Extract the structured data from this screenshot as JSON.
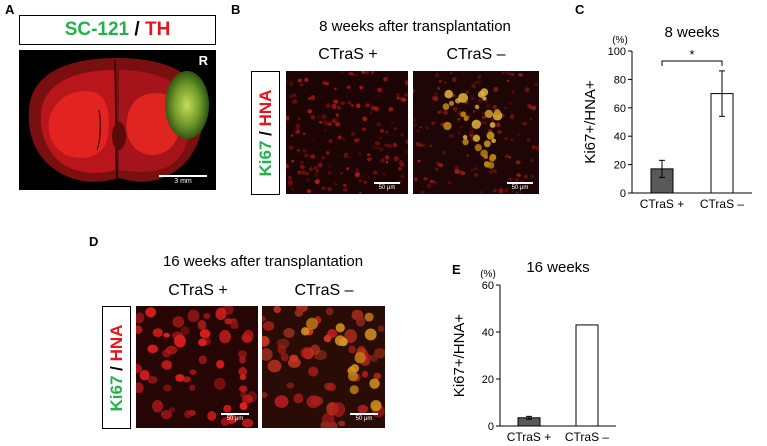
{
  "panel_a": {
    "label": "A",
    "title_green": "SC-121",
    "title_sep": " / ",
    "title_red": "TH",
    "side_marker": "R",
    "scale": "3 mm"
  },
  "panel_b": {
    "label": "B",
    "heading": "8 weeks after transplantation",
    "col_plus": "CTraS +",
    "col_minus": "CTraS –",
    "stain_green": "Ki67",
    "stain_sep": " / ",
    "stain_red": "HNA",
    "scale_left": "50 μm",
    "scale_right": "50 μm"
  },
  "panel_d": {
    "label": "D",
    "heading": "16 weeks after transplantation",
    "col_plus": "CTraS +",
    "col_minus": "CTraS –",
    "stain_green": "Ki67",
    "stain_sep": " / ",
    "stain_red": "HNA",
    "scale_left": "50 μm",
    "scale_right": "50 μm"
  },
  "chart_data": [
    {
      "panel": "C",
      "type": "bar",
      "title": "8 weeks",
      "ylabel": "Ki67+/HNA+",
      "unit": "(%)",
      "categories": [
        "CTraS +",
        "CTraS –"
      ],
      "values": [
        17,
        70
      ],
      "errors": [
        6,
        16
      ],
      "colors": [
        "#595959",
        "#ffffff"
      ],
      "ylim": [
        0,
        100
      ],
      "yticks": [
        0,
        20,
        40,
        60,
        80,
        100
      ],
      "significance": "*"
    },
    {
      "panel": "E",
      "type": "bar",
      "title": "16 weeks",
      "ylabel": "Ki67+/HNA+",
      "unit": "(%)",
      "categories": [
        "CTraS +",
        "CTraS –"
      ],
      "values": [
        3.5,
        43
      ],
      "errors": [
        0.6,
        0
      ],
      "colors": [
        "#595959",
        "#ffffff"
      ],
      "ylim": [
        0,
        60
      ],
      "yticks": [
        0,
        20,
        40,
        60
      ],
      "significance": ""
    }
  ]
}
